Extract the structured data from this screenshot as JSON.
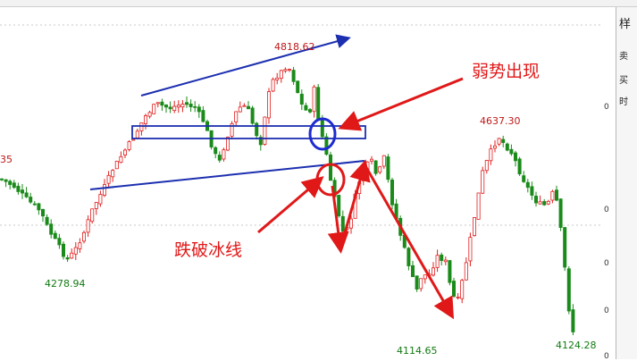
{
  "chart_data": {
    "type": "candlestick",
    "colors": {
      "up": "#e02020",
      "down": "#1a8a1a",
      "trend_line": "#1c2fb0",
      "box": "#1c2fb0",
      "arrow": "#e01818",
      "circle_blue": "#1d2bd0",
      "circle_red": "#e01818"
    },
    "price_range": [
      4090,
      4845
    ],
    "annotations": [
      {
        "id": "high",
        "text": "4818.62",
        "color": "#c01818"
      },
      {
        "id": "low1",
        "text": "4278.94",
        "color": "#127a12"
      },
      {
        "id": "low2",
        "text": "4114.65",
        "color": "#127a12"
      },
      {
        "id": "peak2",
        "text": "4637.30",
        "color": "#c01818"
      },
      {
        "id": "low3",
        "text": "4124.28",
        "color": "#127a12"
      },
      {
        "id": "left-cut",
        "text": "35",
        "color": "#c01818"
      }
    ],
    "callouts": [
      {
        "id": "weak",
        "text": "弱势出现"
      },
      {
        "id": "break",
        "text": "跌破冰线"
      }
    ]
  },
  "price_axis_ticks": [
    "0",
    "0",
    "0",
    "0",
    "0"
  ],
  "right_panel": {
    "labels": [
      "样",
      "卖",
      "买",
      "时"
    ]
  },
  "icons": [
    "window-icon"
  ]
}
